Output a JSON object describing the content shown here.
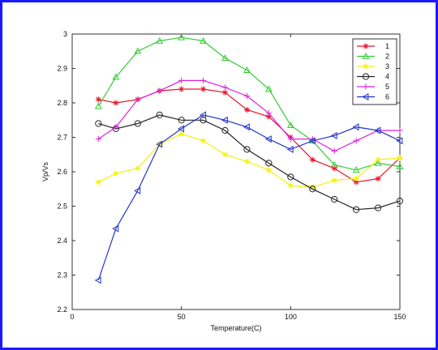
{
  "chart_data": {
    "type": "line",
    "title": "",
    "xlabel": "Temperature(C)",
    "ylabel": "Vp/Vs",
    "xlim": [
      0,
      150
    ],
    "ylim": [
      2.2,
      3.0
    ],
    "xticks": [
      0,
      50,
      100,
      150
    ],
    "yticks": [
      2.2,
      2.3,
      2.4,
      2.5,
      2.6,
      2.7,
      2.8,
      2.9,
      3.0
    ],
    "xtick_labels": [
      "0",
      "50",
      "100",
      "150"
    ],
    "ytick_labels": [
      "2.2",
      "2.3",
      "2.4",
      "2.5",
      "2.6",
      "2.7",
      "2.8",
      "2.9",
      "3"
    ],
    "grid": false,
    "legend_position": "top-right",
    "x": [
      12,
      20,
      30,
      40,
      50,
      60,
      70,
      80,
      90,
      100,
      110,
      120,
      130,
      140,
      150
    ],
    "series": [
      {
        "name": "1",
        "color": "#e8132b",
        "marker": "star",
        "values": [
          2.81,
          2.8,
          2.81,
          2.835,
          2.84,
          2.84,
          2.83,
          2.78,
          2.76,
          2.7,
          2.635,
          2.61,
          2.57,
          2.58,
          2.64
        ]
      },
      {
        "name": "2",
        "color": "#33cc33",
        "marker": "triangle-up",
        "values": [
          2.79,
          2.875,
          2.95,
          2.98,
          2.99,
          2.98,
          2.93,
          2.895,
          2.84,
          2.735,
          2.69,
          2.62,
          2.605,
          2.625,
          2.615
        ]
      },
      {
        "name": "3",
        "color": "#f2f20d",
        "marker": "star",
        "values": [
          2.57,
          2.595,
          2.61,
          2.68,
          2.71,
          2.69,
          2.65,
          2.63,
          2.605,
          2.56,
          2.555,
          2.575,
          2.58,
          2.635,
          2.64
        ]
      },
      {
        "name": "4",
        "color": "#222222",
        "marker": "circle",
        "values": [
          2.74,
          2.725,
          2.74,
          2.765,
          2.75,
          2.75,
          2.72,
          2.665,
          2.625,
          2.585,
          2.55,
          2.52,
          2.49,
          2.495,
          2.515
        ]
      },
      {
        "name": "5",
        "color": "#e020e0",
        "marker": "plus",
        "values": [
          2.695,
          2.73,
          2.81,
          2.835,
          2.865,
          2.865,
          2.845,
          2.82,
          2.77,
          2.695,
          2.695,
          2.66,
          2.69,
          2.72,
          2.72
        ]
      },
      {
        "name": "6",
        "color": "#2233cc",
        "marker": "triangle-left",
        "values": [
          2.285,
          2.435,
          2.545,
          2.68,
          2.725,
          2.765,
          2.75,
          2.73,
          2.695,
          2.665,
          2.69,
          2.705,
          2.73,
          2.72,
          2.69
        ]
      }
    ]
  },
  "colors": {
    "frame_border": "#1a1aff"
  }
}
